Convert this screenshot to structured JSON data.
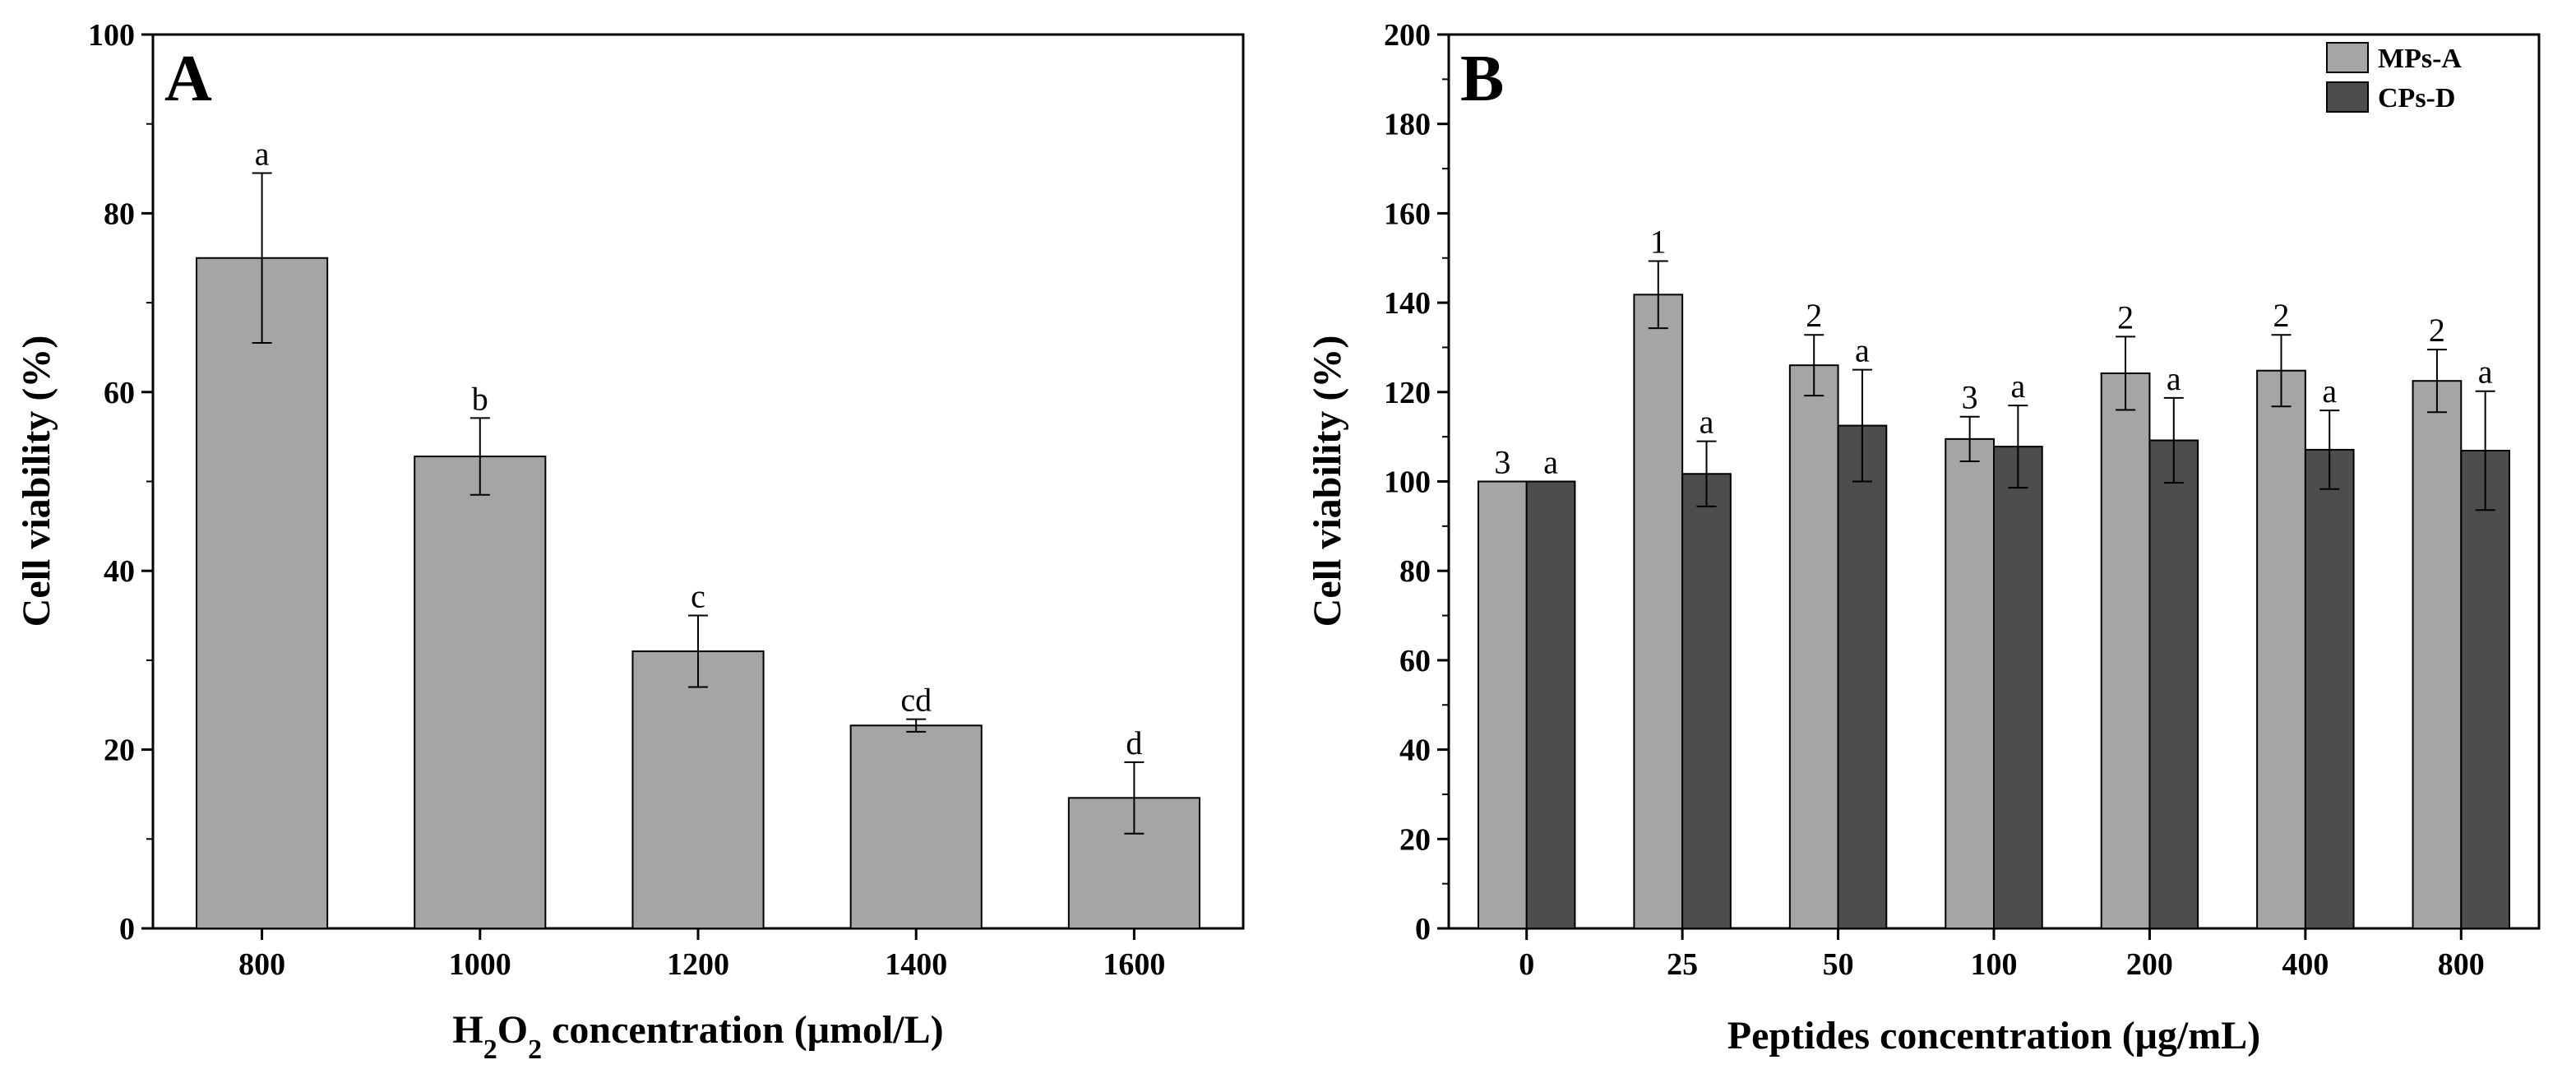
{
  "colors": {
    "light_bar": "#a5a5a5",
    "dark_bar": "#4d4d4d",
    "axis": "#000000"
  },
  "chart_data": [
    {
      "type": "bar",
      "panel_label": "A",
      "categories": [
        "800",
        "1000",
        "1200",
        "1400",
        "1600"
      ],
      "series": [
        {
          "values": [
            75.0,
            52.8,
            31.0,
            22.7,
            14.6
          ],
          "errors": [
            9.5,
            4.3,
            4.0,
            0.7,
            4.0
          ],
          "sig_labels": [
            "a",
            "b",
            "c",
            "cd",
            "d"
          ]
        }
      ],
      "xlabel_main": "H",
      "xlabel_sub1": "2",
      "xlabel_mid": "O",
      "xlabel_sub2": "2",
      "xlabel_rest": " concentration (μmol/L)",
      "ylabel": "Cell viability (%)",
      "ylim": [
        0,
        100
      ],
      "yticks": [
        "0",
        "20",
        "40",
        "60",
        "80",
        "100"
      ],
      "grid": false
    },
    {
      "type": "bar",
      "panel_label": "B",
      "categories": [
        "0",
        "25",
        "50",
        "100",
        "200",
        "400",
        "800"
      ],
      "series": [
        {
          "name": "MPs-A",
          "values": [
            100.0,
            141.8,
            126.0,
            109.5,
            124.2,
            124.8,
            122.5
          ],
          "errors": [
            0.0,
            7.5,
            6.8,
            5.0,
            8.2,
            8.0,
            7.0
          ],
          "sig_labels": [
            "3",
            "1",
            "2",
            "3",
            "2",
            "2",
            "2"
          ]
        },
        {
          "name": "CPs-D",
          "values": [
            100.0,
            101.7,
            112.5,
            107.8,
            109.2,
            107.1,
            106.9
          ],
          "errors": [
            0.0,
            7.3,
            12.5,
            9.2,
            9.5,
            8.8,
            13.3
          ],
          "sig_labels": [
            "a",
            "a",
            "a",
            "a",
            "a",
            "a",
            "a"
          ]
        }
      ],
      "xlabel": "Peptides concentration (μg/mL)",
      "ylabel": "Cell viability (%)",
      "ylim": [
        0,
        200
      ],
      "yticks": [
        "0",
        "20",
        "40",
        "60",
        "80",
        "100",
        "120",
        "140",
        "160",
        "180",
        "200"
      ],
      "legend_position": "top-right",
      "grid": false
    }
  ]
}
